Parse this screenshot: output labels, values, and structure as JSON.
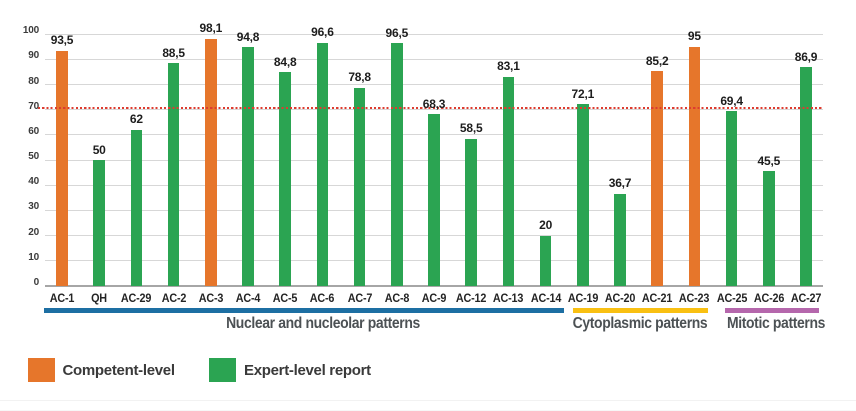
{
  "chart_data": {
    "type": "bar",
    "title": "",
    "xlabel": "",
    "ylabel": "",
    "ylim": [
      0,
      100
    ],
    "yticks": [
      0,
      10,
      20,
      30,
      40,
      50,
      60,
      70,
      80,
      90,
      100
    ],
    "grid": true,
    "threshold_line": {
      "value": 70,
      "style": "dotted",
      "color": "#dd3c30"
    },
    "categories": [
      "AC-1",
      "QH",
      "AC-29",
      "AC-2",
      "AC-3",
      "AC-4",
      "AC-5",
      "AC-6",
      "AC-7",
      "AC-8",
      "AC-9",
      "AC-12",
      "AC-13",
      "AC-14",
      "AC-19",
      "AC-20",
      "AC-21",
      "AC-23",
      "AC-25",
      "AC-26",
      "AC-27"
    ],
    "values": [
      93.5,
      50,
      62,
      88.5,
      98.1,
      94.8,
      84.8,
      96.6,
      78.8,
      96.5,
      68.3,
      58.5,
      83.1,
      20,
      72.1,
      36.7,
      85.2,
      95,
      69.4,
      45.5,
      86.9
    ],
    "value_labels": [
      "93,5",
      "50",
      "62",
      "88,5",
      "98,1",
      "94,8",
      "84,8",
      "96,6",
      "78,8",
      "96,5",
      "68,3",
      "58,5",
      "83,1",
      "20",
      "72,1",
      "36,7",
      "85,2",
      "95",
      "69,4",
      "45,5",
      "86,9"
    ],
    "series_key": [
      "competent",
      "expert",
      "expert",
      "expert",
      "competent",
      "expert",
      "expert",
      "expert",
      "expert",
      "expert",
      "expert",
      "expert",
      "expert",
      "expert",
      "expert",
      "expert",
      "competent",
      "competent",
      "expert",
      "expert",
      "expert"
    ],
    "series_colors": {
      "competent": "#e6762b",
      "expert": "#2ba452"
    },
    "groups": [
      {
        "label": "Nuclear and nucleolar patterns",
        "start": 0,
        "end": 13,
        "color": "#1d6fa3"
      },
      {
        "label": "Cytoplasmic patterns",
        "start": 14,
        "end": 17,
        "color": "#f9c012"
      },
      {
        "label": "Mitotic patterns",
        "start": 18,
        "end": 20,
        "color": "#b567ac"
      }
    ],
    "legend": [
      {
        "label": "Competent-level",
        "key": "competent"
      },
      {
        "label": "Expert-level report",
        "key": "expert"
      }
    ],
    "legend_position": "bottom-left"
  },
  "colors": {
    "background": "#ffffff",
    "gridline": "#d7d7d7",
    "baseline": "#a6a6a6",
    "y_tick_label": "#3b3b3b",
    "bar_value_label": "#1d1d1d",
    "x_tick_label": "#242424",
    "group_label": "#4c5154",
    "legend_label": "#3a3a3a",
    "footer_rule": "#f2f2f2"
  }
}
